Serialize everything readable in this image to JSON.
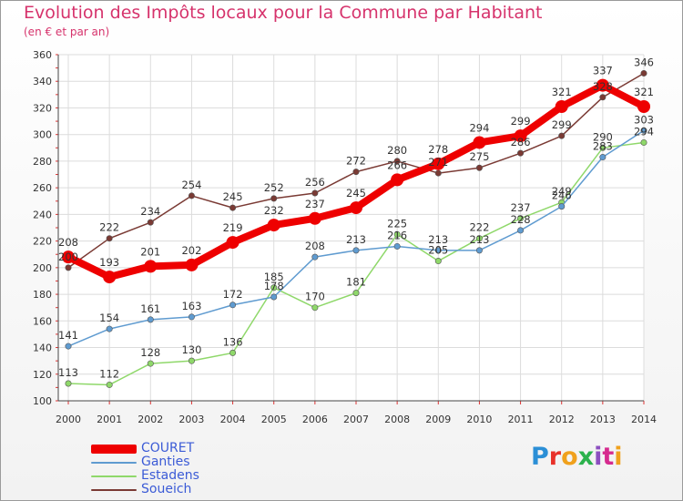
{
  "header": {
    "title": "Evolution des Impôts locaux pour la Commune par Habitant",
    "subtitle": "(en € et par an)"
  },
  "logo_text": "Proxiti",
  "chart_data": {
    "type": "line",
    "title": "Evolution des Impôts locaux pour la Commune par Habitant",
    "subtitle": "(en € et par an)",
    "xlabel": "",
    "ylabel": "",
    "ylim": [
      100,
      360
    ],
    "ytick_step": 20,
    "grid": true,
    "legend_position": "bottom-left",
    "categories": [
      "2000",
      "2001",
      "2002",
      "2003",
      "2004",
      "2005",
      "2006",
      "2007",
      "2008",
      "2009",
      "2010",
      "2011",
      "2012",
      "2013",
      "2014"
    ],
    "series": [
      {
        "name": "COURET",
        "color": "#ee0000",
        "values": [
          208,
          193,
          201,
          202,
          219,
          232,
          237,
          245,
          266,
          278,
          294,
          299,
          321,
          337,
          321
        ]
      },
      {
        "name": "Ganties",
        "color": "#5f9bd0",
        "values": [
          141,
          154,
          161,
          163,
          172,
          178,
          208,
          213,
          216,
          213,
          213,
          228,
          246,
          283,
          303
        ]
      },
      {
        "name": "Estadens",
        "color": "#8fd86a",
        "values": [
          113,
          112,
          128,
          130,
          136,
          185,
          170,
          181,
          225,
          205,
          222,
          237,
          249,
          290,
          294
        ]
      },
      {
        "name": "Soueich",
        "color": "#7a3a34",
        "values": [
          200,
          222,
          234,
          254,
          245,
          252,
          256,
          272,
          280,
          271,
          275,
          286,
          299,
          328,
          346
        ]
      }
    ]
  }
}
